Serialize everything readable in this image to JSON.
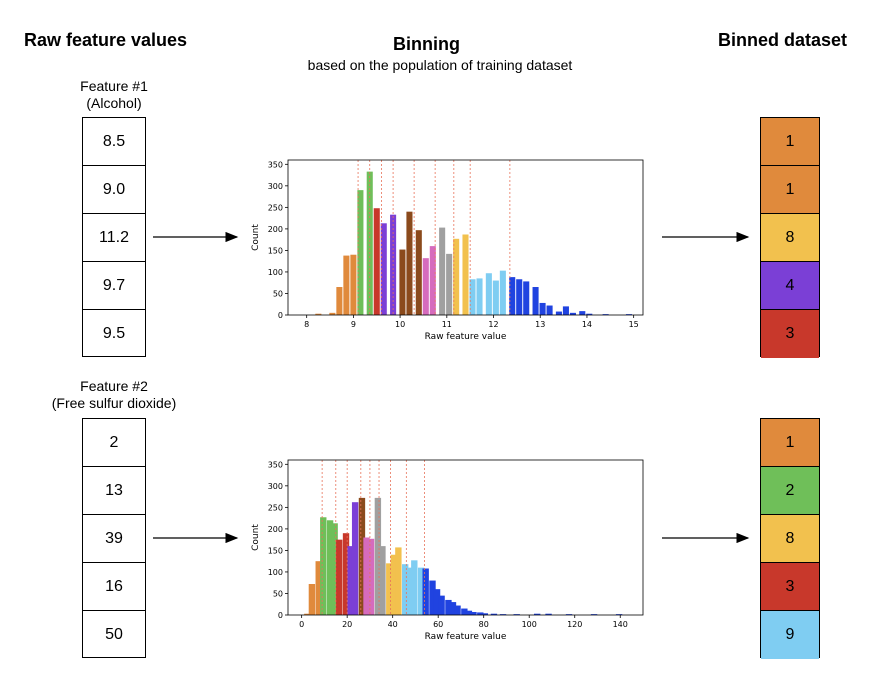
{
  "headers": {
    "raw": "Raw feature values",
    "binning": "Binning",
    "binning_sub": "based on the population of training dataset",
    "binned": "Binned dataset"
  },
  "features": [
    {
      "label_line1": "Feature #1",
      "label_line2": "(Alcohol)",
      "values": [
        "8.5",
        "9.0",
        "11.2",
        "9.7",
        "9.5"
      ],
      "bins": [
        {
          "value": "1",
          "color": "#e08a3c"
        },
        {
          "value": "1",
          "color": "#e08a3c"
        },
        {
          "value": "8",
          "color": "#f2c14e"
        },
        {
          "value": "4",
          "color": "#7b3fd6"
        },
        {
          "value": "3",
          "color": "#c8382b"
        }
      ]
    },
    {
      "label_line1": "Feature #2",
      "label_line2": "(Free sulfur dioxide)",
      "values": [
        "2",
        "13",
        "39",
        "16",
        "50"
      ],
      "bins": [
        {
          "value": "1",
          "color": "#e08a3c"
        },
        {
          "value": "2",
          "color": "#6fbf59"
        },
        {
          "value": "8",
          "color": "#f2c14e"
        },
        {
          "value": "3",
          "color": "#c8382b"
        },
        {
          "value": "9",
          "color": "#7fcdf2"
        }
      ]
    }
  ],
  "chart_data": [
    {
      "type": "bar",
      "xlabel": "Raw feature value",
      "ylabel": "Count",
      "xlim": [
        7.6,
        15.2
      ],
      "ylim": [
        0,
        360
      ],
      "xticks": [
        8,
        9,
        10,
        11,
        12,
        13,
        14,
        15
      ],
      "yticks": [
        0,
        50,
        100,
        150,
        200,
        250,
        300,
        350
      ],
      "bar_width": 0.13,
      "cut_points": [
        9.1,
        9.35,
        9.6,
        9.85,
        10.3,
        10.75,
        11.15,
        11.5,
        12.35
      ],
      "bars": [
        {
          "x": 8.25,
          "y": 3,
          "color": "#e08a3c"
        },
        {
          "x": 8.55,
          "y": 5,
          "color": "#e08a3c"
        },
        {
          "x": 8.7,
          "y": 65,
          "color": "#e08a3c"
        },
        {
          "x": 8.85,
          "y": 138,
          "color": "#e08a3c"
        },
        {
          "x": 9.0,
          "y": 140,
          "color": "#e08a3c"
        },
        {
          "x": 9.15,
          "y": 290,
          "color": "#6fbf59"
        },
        {
          "x": 9.35,
          "y": 333,
          "color": "#6fbf59"
        },
        {
          "x": 9.5,
          "y": 248,
          "color": "#c8382b"
        },
        {
          "x": 9.65,
          "y": 213,
          "color": "#7b3fd6"
        },
        {
          "x": 9.85,
          "y": 233,
          "color": "#7b3fd6"
        },
        {
          "x": 10.05,
          "y": 152,
          "color": "#8b4a1c"
        },
        {
          "x": 10.2,
          "y": 240,
          "color": "#8b4a1c"
        },
        {
          "x": 10.4,
          "y": 197,
          "color": "#8b4a1c"
        },
        {
          "x": 10.55,
          "y": 132,
          "color": "#d66bbd"
        },
        {
          "x": 10.7,
          "y": 160,
          "color": "#d66bbd"
        },
        {
          "x": 10.9,
          "y": 203,
          "color": "#a0a0a0"
        },
        {
          "x": 11.05,
          "y": 142,
          "color": "#a0a0a0"
        },
        {
          "x": 11.2,
          "y": 177,
          "color": "#f2c14e"
        },
        {
          "x": 11.4,
          "y": 187,
          "color": "#f2c14e"
        },
        {
          "x": 11.55,
          "y": 83,
          "color": "#7fcdf2"
        },
        {
          "x": 11.7,
          "y": 85,
          "color": "#7fcdf2"
        },
        {
          "x": 11.9,
          "y": 97,
          "color": "#7fcdf2"
        },
        {
          "x": 12.05,
          "y": 80,
          "color": "#7fcdf2"
        },
        {
          "x": 12.2,
          "y": 103,
          "color": "#7fcdf2"
        },
        {
          "x": 12.4,
          "y": 88,
          "color": "#2043e0"
        },
        {
          "x": 12.55,
          "y": 83,
          "color": "#2043e0"
        },
        {
          "x": 12.7,
          "y": 78,
          "color": "#2043e0"
        },
        {
          "x": 12.9,
          "y": 65,
          "color": "#2043e0"
        },
        {
          "x": 13.05,
          "y": 28,
          "color": "#2043e0"
        },
        {
          "x": 13.2,
          "y": 22,
          "color": "#2043e0"
        },
        {
          "x": 13.4,
          "y": 8,
          "color": "#2043e0"
        },
        {
          "x": 13.55,
          "y": 20,
          "color": "#2043e0"
        },
        {
          "x": 13.7,
          "y": 5,
          "color": "#2043e0"
        },
        {
          "x": 13.9,
          "y": 9,
          "color": "#2043e0"
        },
        {
          "x": 14.05,
          "y": 3,
          "color": "#2043e0"
        },
        {
          "x": 14.4,
          "y": 2,
          "color": "#2043e0"
        },
        {
          "x": 14.9,
          "y": 2,
          "color": "#2043e0"
        }
      ]
    },
    {
      "type": "bar",
      "xlabel": "Raw feature value",
      "ylabel": "Count",
      "xlim": [
        -6,
        150
      ],
      "ylim": [
        0,
        360
      ],
      "xticks": [
        0,
        20,
        40,
        60,
        80,
        100,
        120,
        140
      ],
      "yticks": [
        0,
        50,
        100,
        150,
        200,
        250,
        300,
        350
      ],
      "bar_width": 2.8,
      "cut_points": [
        9,
        15,
        20,
        26,
        30,
        34,
        39,
        46,
        54
      ],
      "bars": [
        {
          "x": 2.5,
          "y": 3,
          "color": "#e08a3c"
        },
        {
          "x": 4.5,
          "y": 72,
          "color": "#e08a3c"
        },
        {
          "x": 7.5,
          "y": 125,
          "color": "#e08a3c"
        },
        {
          "x": 9.5,
          "y": 227,
          "color": "#6fbf59"
        },
        {
          "x": 12.5,
          "y": 220,
          "color": "#6fbf59"
        },
        {
          "x": 14.5,
          "y": 213,
          "color": "#6fbf59"
        },
        {
          "x": 16.5,
          "y": 175,
          "color": "#c8382b"
        },
        {
          "x": 19.5,
          "y": 190,
          "color": "#c8382b"
        },
        {
          "x": 21.5,
          "y": 160,
          "color": "#7b3fd6"
        },
        {
          "x": 23.5,
          "y": 262,
          "color": "#7b3fd6"
        },
        {
          "x": 26.5,
          "y": 272,
          "color": "#8b4a1c"
        },
        {
          "x": 28.5,
          "y": 180,
          "color": "#d66bbd"
        },
        {
          "x": 30.5,
          "y": 177,
          "color": "#d66bbd"
        },
        {
          "x": 33.5,
          "y": 272,
          "color": "#a0a0a0"
        },
        {
          "x": 35.5,
          "y": 160,
          "color": "#a0a0a0"
        },
        {
          "x": 38.5,
          "y": 120,
          "color": "#f2c14e"
        },
        {
          "x": 40.5,
          "y": 140,
          "color": "#f2c14e"
        },
        {
          "x": 42.5,
          "y": 157,
          "color": "#f2c14e"
        },
        {
          "x": 45.5,
          "y": 118,
          "color": "#7fcdf2"
        },
        {
          "x": 47.5,
          "y": 110,
          "color": "#7fcdf2"
        },
        {
          "x": 49.5,
          "y": 127,
          "color": "#7fcdf2"
        },
        {
          "x": 52.5,
          "y": 110,
          "color": "#7fcdf2"
        },
        {
          "x": 54.5,
          "y": 108,
          "color": "#2043e0"
        },
        {
          "x": 57.5,
          "y": 80,
          "color": "#2043e0"
        },
        {
          "x": 59.5,
          "y": 60,
          "color": "#2043e0"
        },
        {
          "x": 61.5,
          "y": 45,
          "color": "#2043e0"
        },
        {
          "x": 64.5,
          "y": 35,
          "color": "#2043e0"
        },
        {
          "x": 66.5,
          "y": 30,
          "color": "#2043e0"
        },
        {
          "x": 68.5,
          "y": 22,
          "color": "#2043e0"
        },
        {
          "x": 71.5,
          "y": 15,
          "color": "#2043e0"
        },
        {
          "x": 73.5,
          "y": 10,
          "color": "#2043e0"
        },
        {
          "x": 75.5,
          "y": 7,
          "color": "#2043e0"
        },
        {
          "x": 78.5,
          "y": 6,
          "color": "#2043e0"
        },
        {
          "x": 80.5,
          "y": 4,
          "color": "#2043e0"
        },
        {
          "x": 84.5,
          "y": 3,
          "color": "#2043e0"
        },
        {
          "x": 88.5,
          "y": 2,
          "color": "#2043e0"
        },
        {
          "x": 94.5,
          "y": 2,
          "color": "#2043e0"
        },
        {
          "x": 103.5,
          "y": 3,
          "color": "#2043e0"
        },
        {
          "x": 108.5,
          "y": 3,
          "color": "#2043e0"
        },
        {
          "x": 117.5,
          "y": 2,
          "color": "#2043e0"
        },
        {
          "x": 128.5,
          "y": 2,
          "color": "#2043e0"
        },
        {
          "x": 139.5,
          "y": 2,
          "color": "#2043e0"
        }
      ]
    }
  ]
}
